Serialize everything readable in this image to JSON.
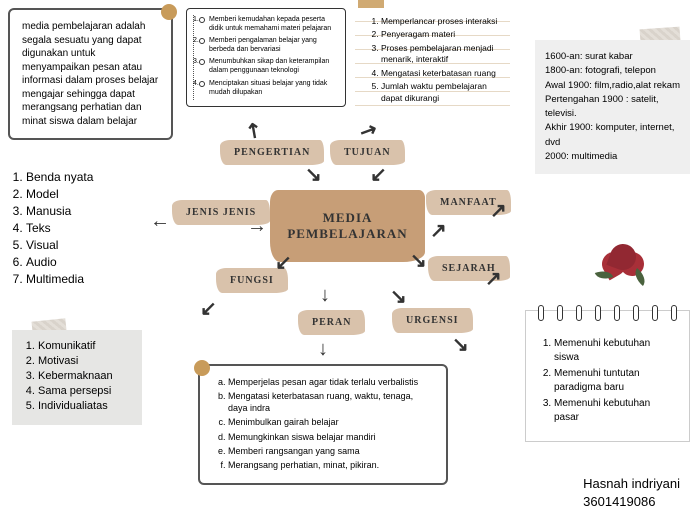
{
  "colors": {
    "accent": "#c89b5a",
    "center": "#c79e77",
    "chip": "#d9c2ab",
    "grey": "#e6e6e4"
  },
  "definition": "media pembelajaran adalah segala sesuatu yang dapat digunakan untuk menyampaikan pesan atau informasi dalam proses belajar mengajar sehingga dapat merangsang perhatian dan minat siswa dalam belajar",
  "checklist": [
    "Memberi kemudahan kepada peserta didik untuk memahami materi pelajaran",
    "Memberi pengalaman belajar yang berbeda dan bervariasi",
    "Menumbuhkan sikap dan keterampilan dalam penggunaan teknologi",
    "Menciptakan situasi belajar yang tidak mudah dilupakan"
  ],
  "manfaat": [
    "Memperlancar proses interaksi",
    "Penyeragam materi",
    "Proses pembelajaran menjadi menarik, interaktif",
    "Mengatasi keterbatasan ruang",
    "Jumlah waktu pembelajaran dapat dikurangi"
  ],
  "sejarah": [
    "1600-an: surat kabar",
    "1800-an: fotografi, telepon",
    "Awal 1900: film,radio,alat rekam",
    "Pertengahan 1900 : satelit, televisi.",
    "Akhir 1900: komputer, internet, dvd",
    "2000: multimedia"
  ],
  "jenis": [
    "Benda nyata",
    "Model",
    "Manusia",
    "Teks",
    "Visual",
    "Audio",
    "Multimedia"
  ],
  "fungsi": [
    "Komunikatif",
    "Motivasi",
    "Kebermaknaan",
    "Sama persepsi",
    "Individualiatas"
  ],
  "peran": [
    "Memperjelas pesan agar tidak terlalu verbalistis",
    "Mengatasi keterbatasan ruang, waktu, tenaga, daya indra",
    "Menimbulkan gairah belajar",
    "Memungkinkan siswa belajar mandiri",
    "Memberi rangsangan yang sama",
    "Merangsang perhatian, minat, pikiran."
  ],
  "urgensi": [
    "Memenuhi kebutuhan siswa",
    "Memenuhi tuntutan paradigma baru",
    "Memenuhi kebutuhan pasar"
  ],
  "center": {
    "line1": "MEDIA",
    "line2": "PEMBELAJARAN"
  },
  "chips": {
    "pengertian": "PENGERTIAN",
    "tujuan": "TUJUAN",
    "manfaat": "MANFAAT",
    "jenis": "JENIS JENIS",
    "fungsi": "FUNGSI",
    "sejarah": "SEJARAH",
    "peran": "PERAN",
    "urgensi": "URGENSI"
  },
  "signature": {
    "name": "Hasnah indriyani",
    "id": "3601419086"
  }
}
